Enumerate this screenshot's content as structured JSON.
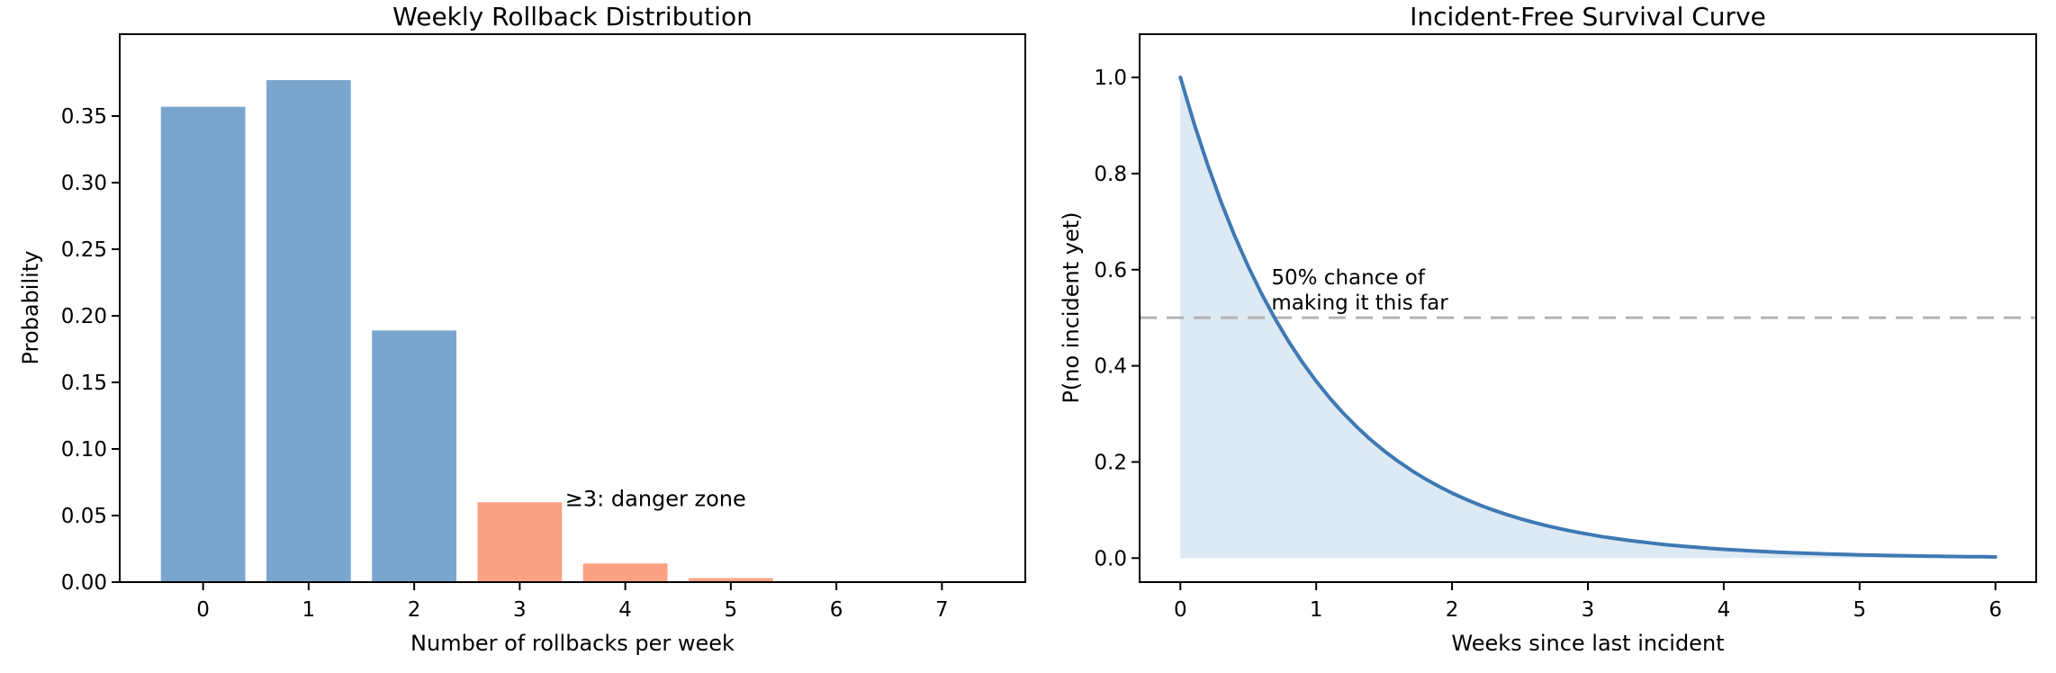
{
  "figure": {
    "background": "#ffffff"
  },
  "chart_data": [
    {
      "type": "bar",
      "title": "Weekly Rollback Distribution",
      "xlabel": "Number of rollbacks per week",
      "ylabel": "Probability",
      "categories": [
        0,
        1,
        2,
        3,
        4,
        5,
        6,
        7
      ],
      "values": [
        0.357,
        0.377,
        0.189,
        0.06,
        0.014,
        0.003,
        0.0,
        0.0
      ],
      "bar_width": 0.8,
      "danger_threshold": 3,
      "colors": {
        "bar_normal": "#7aa6ce",
        "bar_danger": "#fca183"
      },
      "annotation": {
        "text": "≥3: danger zone",
        "x": 3.43,
        "y": 0.057,
        "color": "#f57d52"
      },
      "xlim": [
        -0.79,
        7.79
      ],
      "ylim": [
        0,
        0.4115
      ],
      "xticks": [
        0,
        1,
        2,
        3,
        4,
        5,
        6,
        7
      ],
      "xtick_labels": [
        "0",
        "1",
        "2",
        "3",
        "4",
        "5",
        "6",
        "7"
      ],
      "yticks": [
        0,
        0.05,
        0.1,
        0.15,
        0.2,
        0.25,
        0.3,
        0.35
      ],
      "ytick_labels": [
        "0.00",
        "0.05",
        "0.10",
        "0.15",
        "0.20",
        "0.25",
        "0.30",
        "0.35"
      ],
      "grid": false,
      "legend": null
    },
    {
      "type": "line",
      "title": "Incident-Free Survival Curve",
      "xlabel": "Weeks since last incident",
      "ylabel": "P(no incident yet)",
      "x": [
        0,
        0.1,
        0.2,
        0.3,
        0.4,
        0.5,
        0.6,
        0.7,
        0.8,
        0.9,
        1.0,
        1.1,
        1.2,
        1.3,
        1.4,
        1.5,
        1.6,
        1.7,
        1.8,
        1.9,
        2.0,
        2.1,
        2.2,
        2.3,
        2.4,
        2.5,
        2.6,
        2.7,
        2.8,
        2.9,
        3.0,
        3.1,
        3.2,
        3.3,
        3.4,
        3.5,
        3.6,
        3.7,
        3.8,
        3.9,
        4.0,
        4.1,
        4.2,
        4.3,
        4.4,
        4.5,
        4.6,
        4.7,
        4.8,
        4.9,
        5.0,
        5.1,
        5.2,
        5.3,
        5.4,
        5.5,
        5.6,
        5.7,
        5.8,
        5.9,
        6.0
      ],
      "y": [
        1.0,
        0.9048,
        0.8187,
        0.7408,
        0.6703,
        0.6065,
        0.5488,
        0.4966,
        0.4493,
        0.4066,
        0.3679,
        0.3329,
        0.3012,
        0.2725,
        0.2466,
        0.2231,
        0.2019,
        0.1827,
        0.1653,
        0.1496,
        0.1353,
        0.1225,
        0.1108,
        0.1003,
        0.0907,
        0.0821,
        0.0743,
        0.0672,
        0.0608,
        0.055,
        0.0498,
        0.045,
        0.0408,
        0.0369,
        0.0334,
        0.0302,
        0.0273,
        0.0247,
        0.0224,
        0.0202,
        0.0183,
        0.0166,
        0.015,
        0.0136,
        0.0123,
        0.0111,
        0.0101,
        0.0091,
        0.0082,
        0.0074,
        0.0067,
        0.0061,
        0.0055,
        0.005,
        0.0045,
        0.0041,
        0.0037,
        0.0033,
        0.003,
        0.0027,
        0.0025
      ],
      "line_color": "#3e79b3",
      "line_width": 4,
      "fill_color": "#dde9f3",
      "fill_to_y": 0,
      "hline": {
        "y": 0.5,
        "color": "#b3b3b3",
        "dash": [
          19,
          11
        ],
        "width": 3
      },
      "annotation": {
        "lines": [
          "50% chance of",
          "making it this far"
        ],
        "x": 0.67,
        "y": 0.57,
        "color": "#8a8a8a",
        "line_spacing": 28
      },
      "xlim": [
        -0.3,
        6.3
      ],
      "ylim": [
        -0.05,
        1.09
      ],
      "xticks": [
        0,
        1,
        2,
        3,
        4,
        5,
        6
      ],
      "xtick_labels": [
        "0",
        "1",
        "2",
        "3",
        "4",
        "5",
        "6"
      ],
      "yticks": [
        0,
        0.2,
        0.4,
        0.6,
        0.8,
        1.0
      ],
      "ytick_labels": [
        "0.0",
        "0.2",
        "0.4",
        "0.6",
        "0.8",
        "1.0"
      ],
      "grid": false,
      "legend": null
    }
  ]
}
